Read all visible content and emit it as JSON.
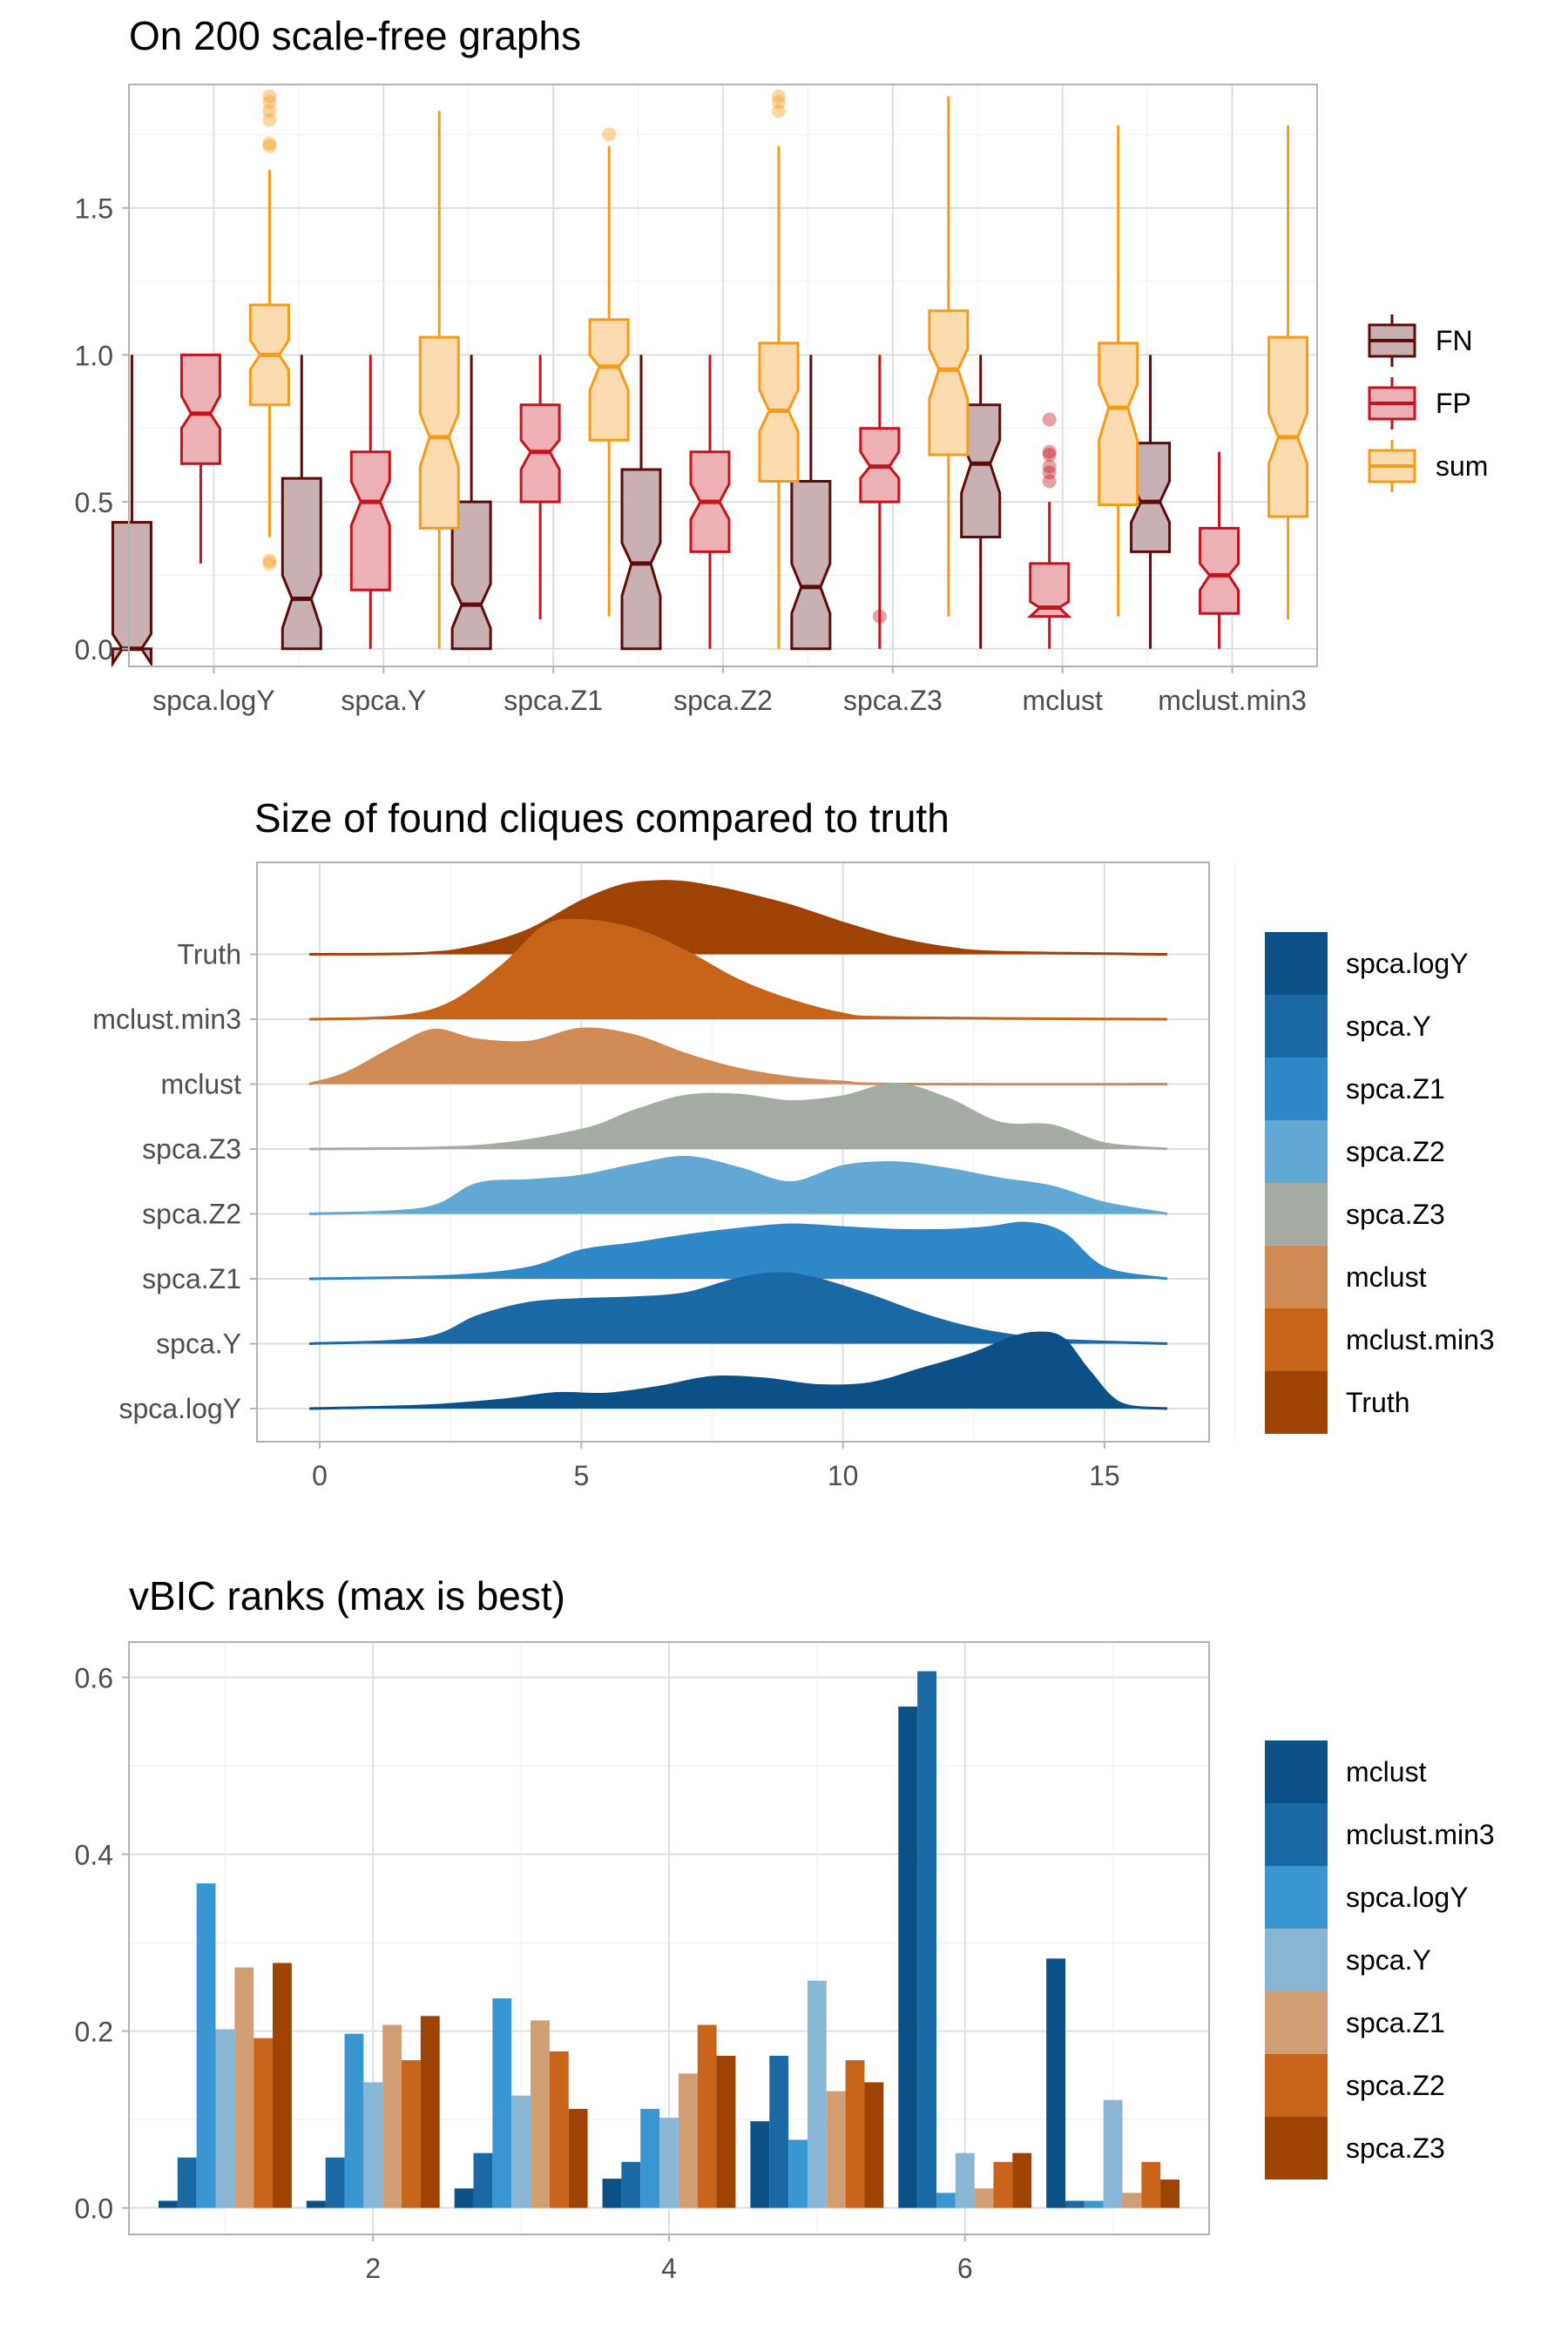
{
  "chart_data": [
    {
      "type": "boxplot",
      "title": "On 200 scale-free graphs",
      "categories": [
        "spca.logY",
        "spca.Y",
        "spca.Z1",
        "spca.Z2",
        "spca.Z3",
        "mclust",
        "mclust.min3"
      ],
      "ylim": [
        -0.06,
        1.92
      ],
      "yticks": [
        "0.0",
        "0.5",
        "1.0",
        "1.5"
      ],
      "grid": true,
      "legend_position": "right",
      "legend": [
        "FN",
        "FP",
        "sum"
      ],
      "colors": {
        "FN": {
          "line": "#5c0a0a",
          "fill": "#c9b1b3"
        },
        "FP": {
          "line": "#c4121f",
          "fill": "#ecb0b5"
        },
        "sum": {
          "line": "#f79a17",
          "fill": "#fcdcae"
        }
      },
      "series": [
        {
          "name": "FN",
          "boxes": [
            {
              "min": 0,
              "q1": 0,
              "median": 0,
              "q3": 0.43,
              "max": 1.0,
              "notch_lo": -0.05,
              "notch_hi": 0.05,
              "outliers": []
            },
            {
              "min": 0,
              "q1": 0,
              "median": 0.17,
              "q3": 0.58,
              "max": 1.0,
              "notch_lo": 0.07,
              "notch_hi": 0.25,
              "outliers": []
            },
            {
              "min": 0,
              "q1": 0,
              "median": 0.15,
              "q3": 0.5,
              "max": 1.0,
              "notch_lo": 0.07,
              "notch_hi": 0.22,
              "outliers": []
            },
            {
              "min": 0,
              "q1": 0,
              "median": 0.29,
              "q3": 0.61,
              "max": 1.0,
              "notch_lo": 0.18,
              "notch_hi": 0.36,
              "outliers": []
            },
            {
              "min": 0,
              "q1": 0,
              "median": 0.21,
              "q3": 0.57,
              "max": 1.0,
              "notch_lo": 0.12,
              "notch_hi": 0.29,
              "outliers": []
            },
            {
              "min": 0,
              "q1": 0.38,
              "median": 0.63,
              "q3": 0.83,
              "max": 1.0,
              "notch_lo": 0.53,
              "notch_hi": 0.71,
              "outliers": []
            },
            {
              "min": 0,
              "q1": 0.33,
              "median": 0.5,
              "q3": 0.7,
              "max": 1.0,
              "notch_lo": 0.43,
              "notch_hi": 0.57,
              "outliers": []
            }
          ]
        },
        {
          "name": "FP",
          "boxes": [
            {
              "min": 0.29,
              "q1": 0.63,
              "median": 0.8,
              "q3": 1.0,
              "max": 1.0,
              "notch_lo": 0.75,
              "notch_hi": 0.86,
              "outliers": []
            },
            {
              "min": 0,
              "q1": 0.2,
              "median": 0.5,
              "q3": 0.67,
              "max": 1.0,
              "notch_lo": 0.42,
              "notch_hi": 0.57,
              "outliers": []
            },
            {
              "min": 0.1,
              "q1": 0.5,
              "median": 0.67,
              "q3": 0.83,
              "max": 1.0,
              "notch_lo": 0.61,
              "notch_hi": 0.71,
              "outliers": []
            },
            {
              "min": 0,
              "q1": 0.33,
              "median": 0.5,
              "q3": 0.67,
              "max": 1.0,
              "notch_lo": 0.44,
              "notch_hi": 0.56,
              "outliers": []
            },
            {
              "min": 0,
              "q1": 0.5,
              "median": 0.62,
              "q3": 0.75,
              "max": 1.0,
              "notch_lo": 0.58,
              "notch_hi": 0.67,
              "outliers": [
                0.11
              ]
            },
            {
              "min": 0,
              "q1": 0.11,
              "median": 0.14,
              "q3": 0.29,
              "max": 0.5,
              "notch_lo": 0.11,
              "notch_hi": 0.16,
              "outliers": [
                0.57,
                0.6,
                0.62,
                0.66,
                0.67,
                0.78
              ]
            },
            {
              "min": 0,
              "q1": 0.12,
              "median": 0.25,
              "q3": 0.41,
              "max": 0.67,
              "notch_lo": 0.2,
              "notch_hi": 0.29,
              "outliers": []
            }
          ]
        },
        {
          "name": "sum",
          "boxes": [
            {
              "min": 0.38,
              "q1": 0.83,
              "median": 1.0,
              "q3": 1.17,
              "max": 1.63,
              "notch_lo": 0.95,
              "notch_hi": 1.05,
              "outliers": [
                0.29,
                0.3,
                1.71,
                1.72,
                1.8,
                1.83,
                1.86,
                1.88
              ]
            },
            {
              "min": 0,
              "q1": 0.41,
              "median": 0.72,
              "q3": 1.06,
              "max": 1.83,
              "notch_lo": 0.62,
              "notch_hi": 0.8,
              "outliers": []
            },
            {
              "min": 0.11,
              "q1": 0.71,
              "median": 0.96,
              "q3": 1.12,
              "max": 1.71,
              "notch_lo": 0.88,
              "notch_hi": 1.0,
              "outliers": [
                1.75
              ]
            },
            {
              "min": 0,
              "q1": 0.57,
              "median": 0.81,
              "q3": 1.04,
              "max": 1.71,
              "notch_lo": 0.74,
              "notch_hi": 0.88,
              "outliers": [
                1.83,
                1.86,
                1.88
              ]
            },
            {
              "min": 0.11,
              "q1": 0.66,
              "median": 0.95,
              "q3": 1.15,
              "max": 1.88,
              "notch_lo": 0.85,
              "notch_hi": 1.02,
              "outliers": []
            },
            {
              "min": 0.11,
              "q1": 0.49,
              "median": 0.82,
              "q3": 1.04,
              "max": 1.78,
              "notch_lo": 0.71,
              "notch_hi": 0.9,
              "outliers": []
            },
            {
              "min": 0.1,
              "q1": 0.45,
              "median": 0.72,
              "q3": 1.06,
              "max": 1.78,
              "notch_lo": 0.63,
              "notch_hi": 0.8,
              "outliers": []
            }
          ]
        }
      ]
    },
    {
      "type": "ridgeline",
      "title": "Size of found cliques compared to truth",
      "xlim": [
        -1.2,
        17
      ],
      "xticks": [
        0,
        5,
        10,
        15
      ],
      "grid": true,
      "legend_position": "right",
      "series": [
        {
          "name": "spca.logY",
          "color": "#0b5086",
          "x": [
            -0.2,
            2,
            3.5,
            4.5,
            5.5,
            6.5,
            7.5,
            8.5,
            9.5,
            10.5,
            11.5,
            12.5,
            13.2,
            13.7,
            14.2,
            14.7,
            15.3,
            16.2
          ],
          "density": [
            0,
            0.05,
            0.16,
            0.28,
            0.27,
            0.4,
            0.58,
            0.55,
            0.43,
            0.46,
            0.73,
            1.02,
            1.3,
            1.4,
            1.3,
            0.7,
            0.1,
            0
          ]
        },
        {
          "name": "spca.Y",
          "color": "#1a69a5",
          "x": [
            -0.2,
            2,
            3,
            4,
            5,
            6,
            7,
            8,
            8.8,
            9.5,
            10.5,
            11.5,
            12.5,
            13.5,
            14.5,
            16.2
          ],
          "density": [
            0,
            0.1,
            0.5,
            0.75,
            0.82,
            0.85,
            0.93,
            1.2,
            1.3,
            1.2,
            0.9,
            0.55,
            0.28,
            0.12,
            0.05,
            0
          ]
        },
        {
          "name": "spca.Z1",
          "color": "#2e88c8",
          "x": [
            -0.2,
            2.5,
            4,
            5,
            6,
            7,
            8,
            9,
            10,
            11,
            12,
            12.8,
            13.5,
            14.2,
            15,
            16.2
          ],
          "density": [
            0,
            0.05,
            0.2,
            0.52,
            0.65,
            0.8,
            0.92,
            1.0,
            0.95,
            0.9,
            0.9,
            0.95,
            1.03,
            0.85,
            0.2,
            0
          ]
        },
        {
          "name": "spca.Z2",
          "color": "#62a8d5",
          "x": [
            -0.2,
            2,
            3,
            4,
            5,
            6,
            7,
            8,
            9,
            10,
            11,
            12,
            13,
            14,
            15,
            16.2
          ],
          "density": [
            0,
            0.1,
            0.55,
            0.62,
            0.7,
            0.9,
            1.05,
            0.85,
            0.58,
            0.88,
            0.95,
            0.83,
            0.65,
            0.5,
            0.2,
            0
          ]
        },
        {
          "name": "spca.Z3",
          "color": "#a4aba2",
          "x": [
            -0.2,
            3,
            5,
            6,
            7,
            8,
            9,
            10,
            11,
            12,
            13,
            14,
            15,
            16.2
          ],
          "density": [
            0,
            0.05,
            0.35,
            0.7,
            0.98,
            1.0,
            0.88,
            0.97,
            1.2,
            0.93,
            0.48,
            0.43,
            0.1,
            0
          ]
        },
        {
          "name": "mclust",
          "color": "#d08b55",
          "x": [
            -0.2,
            0.5,
            1.5,
            2.2,
            3,
            4,
            5,
            6,
            7,
            8,
            9,
            10,
            11,
            16.2
          ],
          "density": [
            0,
            0.2,
            0.72,
            1.0,
            0.82,
            0.78,
            1.02,
            0.9,
            0.55,
            0.28,
            0.12,
            0.04,
            0,
            0
          ]
        },
        {
          "name": "mclust.min3",
          "color": "#c66318",
          "x": [
            -0.2,
            1.5,
            2.5,
            3.5,
            4.3,
            5,
            6,
            7,
            8,
            9,
            10,
            11,
            16.2
          ],
          "density": [
            0,
            0.05,
            0.3,
            1.0,
            1.72,
            1.83,
            1.67,
            1.25,
            0.72,
            0.35,
            0.1,
            0.03,
            0
          ]
        },
        {
          "name": "Truth",
          "color": "#9f4304",
          "x": [
            -0.2,
            2,
            3,
            4,
            5,
            5.8,
            6.5,
            7,
            7.5,
            8,
            9,
            10,
            11,
            12,
            13,
            16.2
          ],
          "density": [
            0,
            0.02,
            0.15,
            0.45,
            0.98,
            1.28,
            1.35,
            1.33,
            1.25,
            1.15,
            0.9,
            0.58,
            0.3,
            0.12,
            0.04,
            0
          ]
        }
      ],
      "legend": [
        "spca.logY",
        "spca.Y",
        "spca.Z1",
        "spca.Z2",
        "spca.Z3",
        "mclust",
        "mclust.min3",
        "Truth"
      ]
    },
    {
      "type": "bar",
      "title": "vBIC ranks (max is best)",
      "x": [
        1,
        2,
        3,
        4,
        5,
        6,
        7
      ],
      "xticks": [
        2,
        4,
        6
      ],
      "ylim": [
        -0.03,
        0.64
      ],
      "yticks": [
        "0.0",
        "0.2",
        "0.4",
        "0.6"
      ],
      "grid": true,
      "legend_position": "right",
      "series": [
        {
          "name": "mclust",
          "color": "#0b5086",
          "values": [
            0.008,
            0.008,
            0.022,
            0.033,
            0.098,
            0.567,
            0.282
          ]
        },
        {
          "name": "mclust.min3",
          "color": "#1a69a5",
          "values": [
            0.057,
            0.057,
            0.062,
            0.052,
            0.172,
            0.607,
            0.008
          ]
        },
        {
          "name": "spca.logY",
          "color": "#3a96d3",
          "values": [
            0.367,
            0.197,
            0.237,
            0.112,
            0.077,
            0.017,
            0.008
          ]
        },
        {
          "name": "spca.Y",
          "color": "#88b6d4",
          "values": [
            0.202,
            0.142,
            0.127,
            0.102,
            0.257,
            0.062,
            0.122
          ]
        },
        {
          "name": "spca.Z1",
          "color": "#d19e74",
          "values": [
            0.272,
            0.207,
            0.212,
            0.152,
            0.132,
            0.022,
            0.017
          ]
        },
        {
          "name": "spca.Z2",
          "color": "#c8641b",
          "values": [
            0.192,
            0.167,
            0.177,
            0.207,
            0.167,
            0.052,
            0.052
          ]
        },
        {
          "name": "spca.Z3",
          "color": "#9f4304",
          "values": [
            0.277,
            0.217,
            0.112,
            0.172,
            0.142,
            0.062,
            0.032
          ]
        }
      ],
      "legend": [
        "mclust",
        "mclust.min3",
        "spca.logY",
        "spca.Y",
        "spca.Z1",
        "spca.Z2",
        "spca.Z3"
      ]
    }
  ]
}
